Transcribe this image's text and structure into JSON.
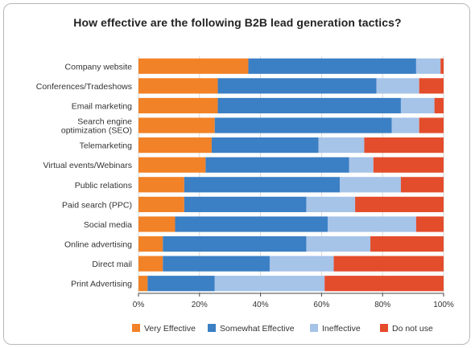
{
  "chart_data": {
    "type": "bar",
    "orientation": "horizontal",
    "stacked": true,
    "title": "How effective are the following B2B lead generation tactics?",
    "categories": [
      "Company website",
      "Conferences/Tradeshows",
      "Email marketing",
      "Search engine\noptimization (SEO)",
      "Telemarketing",
      "Virtual events/Webinars",
      "Public relations",
      "Paid search (PPC)",
      "Social media",
      "Online advertising",
      "Direct mail",
      "Print Advertising"
    ],
    "series": [
      {
        "name": "Very Effective",
        "color": "#f28227",
        "values": [
          36,
          26,
          26,
          25,
          24,
          22,
          15,
          15,
          12,
          8,
          8,
          3
        ]
      },
      {
        "name": "Somewhat Effective",
        "color": "#3b7fc4",
        "values": [
          55,
          52,
          60,
          58,
          35,
          47,
          51,
          40,
          50,
          47,
          35,
          22
        ]
      },
      {
        "name": "Ineffective",
        "color": "#a6c3e8",
        "values": [
          8,
          14,
          11,
          9,
          15,
          8,
          20,
          16,
          29,
          21,
          21,
          36
        ]
      },
      {
        "name": "Do not use",
        "color": "#e34d2c",
        "values": [
          1,
          8,
          3,
          8,
          26,
          23,
          14,
          29,
          9,
          24,
          36,
          39
        ]
      }
    ],
    "xlim": [
      0,
      100
    ],
    "xticks": [
      "0%",
      "20%",
      "40%",
      "60%",
      "80%",
      "100%"
    ],
    "grid": true,
    "legend_position": "bottom"
  }
}
